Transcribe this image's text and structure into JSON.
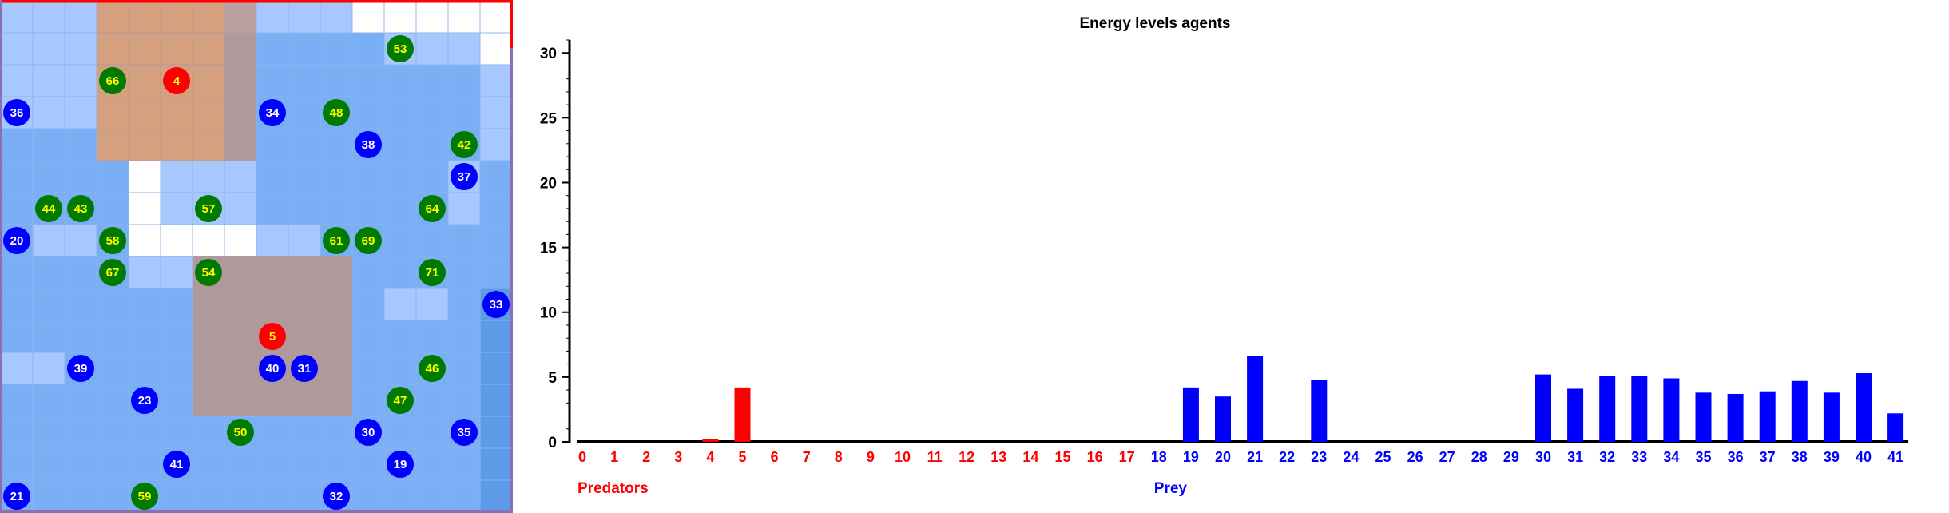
{
  "colors": {
    "predator": "#ff0000",
    "prey_blue": "#0000ff",
    "prey_green": "#007a00",
    "predator_label": "#ffff00",
    "prey_blue_label": "#ffffff",
    "prey_green_label": "#ffff00",
    "grid_frame_top": "#ff0000",
    "grid_frame_sides": "#8b6fb5",
    "region_overlay": "#c39078"
  },
  "grid": {
    "cols": 16,
    "rows": 16,
    "cell_shades": [
      "LLLPPPPLLLLWWWWW",
      "LLLPPPPMMMMMLLLW",
      "LLLPPPPMMMMMMMML",
      "LLLPPPPMMMMMMMML",
      "MMMPPPPMMMMMMMML",
      "MMMMWLLLMMMMMMLM",
      "MMMMWLLLMMMMMMLM",
      "MLLMWWWWLLMMMMMM",
      "MMMMLLMMMMMMMMMM",
      "MMMMMMMMMMMMLLMD",
      "MMMMMMMMMMMMMMMD",
      "LLMMMMMMMMMMMMMD",
      "MMMMMMMMMMMMMMMD",
      "MMMMMMMMMMMMMMMD",
      "MMMMMMMMMMMMMMMD",
      "MMMMMMMMMMMMMMMD"
    ],
    "shade_colors": {
      "W": "#ffffff",
      "L": "#a6c8ff",
      "M": "#7aaff6",
      "D": "#5d9be8",
      "P": "#ffc890"
    },
    "overlay_regions": [
      {
        "col": 3,
        "row": 0,
        "w": 5,
        "h": 5
      },
      {
        "col": 6,
        "row": 8,
        "w": 5,
        "h": 5
      }
    ],
    "agents": [
      {
        "id": "4",
        "type": "predator",
        "col": 5,
        "row": 2
      },
      {
        "id": "5",
        "type": "predator",
        "col": 8,
        "row": 10
      },
      {
        "id": "66",
        "type": "green",
        "col": 3,
        "row": 2
      },
      {
        "id": "53",
        "type": "green",
        "col": 12,
        "row": 1
      },
      {
        "id": "36",
        "type": "blue",
        "col": 0,
        "row": 3
      },
      {
        "id": "34",
        "type": "blue",
        "col": 8,
        "row": 3
      },
      {
        "id": "48",
        "type": "green",
        "col": 10,
        "row": 3
      },
      {
        "id": "38",
        "type": "blue",
        "col": 11,
        "row": 4
      },
      {
        "id": "42",
        "type": "green",
        "col": 14,
        "row": 4
      },
      {
        "id": "37",
        "type": "blue",
        "col": 14,
        "row": 5
      },
      {
        "id": "44",
        "type": "green",
        "col": 1,
        "row": 6
      },
      {
        "id": "43",
        "type": "green",
        "col": 2,
        "row": 6
      },
      {
        "id": "57",
        "type": "green",
        "col": 6,
        "row": 6
      },
      {
        "id": "64",
        "type": "green",
        "col": 13,
        "row": 6
      },
      {
        "id": "20",
        "type": "blue",
        "col": 0,
        "row": 7
      },
      {
        "id": "58",
        "type": "green",
        "col": 3,
        "row": 7
      },
      {
        "id": "61",
        "type": "green",
        "col": 10,
        "row": 7
      },
      {
        "id": "69",
        "type": "green",
        "col": 11,
        "row": 7
      },
      {
        "id": "67",
        "type": "green",
        "col": 3,
        "row": 8
      },
      {
        "id": "54",
        "type": "green",
        "col": 6,
        "row": 8
      },
      {
        "id": "71",
        "type": "green",
        "col": 13,
        "row": 8
      },
      {
        "id": "33",
        "type": "blue",
        "col": 15,
        "row": 9
      },
      {
        "id": "39",
        "type": "blue",
        "col": 2,
        "row": 11
      },
      {
        "id": "40",
        "type": "blue",
        "col": 8,
        "row": 11
      },
      {
        "id": "31",
        "type": "blue",
        "col": 9,
        "row": 11
      },
      {
        "id": "46",
        "type": "green",
        "col": 13,
        "row": 11
      },
      {
        "id": "23",
        "type": "blue",
        "col": 4,
        "row": 12
      },
      {
        "id": "47",
        "type": "green",
        "col": 12,
        "row": 12
      },
      {
        "id": "50",
        "type": "green",
        "col": 7,
        "row": 13
      },
      {
        "id": "30",
        "type": "blue",
        "col": 11,
        "row": 13
      },
      {
        "id": "35",
        "type": "blue",
        "col": 14,
        "row": 13
      },
      {
        "id": "41",
        "type": "blue",
        "col": 5,
        "row": 14
      },
      {
        "id": "19",
        "type": "blue",
        "col": 12,
        "row": 14
      },
      {
        "id": "21",
        "type": "blue",
        "col": 0,
        "row": 15
      },
      {
        "id": "59",
        "type": "green",
        "col": 4,
        "row": 15
      },
      {
        "id": "32",
        "type": "blue",
        "col": 10,
        "row": 15
      }
    ]
  },
  "chart_data": {
    "type": "bar",
    "title": "Energy levels agents",
    "xlabel": "",
    "ylabel": "",
    "ylim": [
      0,
      31
    ],
    "yticks": [
      0,
      5,
      10,
      15,
      20,
      25,
      30
    ],
    "grid": false,
    "groups": [
      {
        "name": "Predators",
        "color": "#ff0000"
      },
      {
        "name": "Prey",
        "color": "#0000ff"
      }
    ],
    "categories": [
      "0",
      "1",
      "2",
      "3",
      "4",
      "5",
      "6",
      "7",
      "8",
      "9",
      "10",
      "11",
      "12",
      "13",
      "14",
      "15",
      "16",
      "17",
      "18",
      "19",
      "20",
      "21",
      "22",
      "23",
      "24",
      "25",
      "26",
      "27",
      "28",
      "29",
      "30",
      "31",
      "32",
      "33",
      "34",
      "35",
      "36",
      "37",
      "38",
      "39",
      "40",
      "41"
    ],
    "category_group": [
      "Predators",
      "Predators",
      "Predators",
      "Predators",
      "Predators",
      "Predators",
      "Predators",
      "Predators",
      "Predators",
      "Predators",
      "Predators",
      "Predators",
      "Predators",
      "Predators",
      "Predators",
      "Predators",
      "Predators",
      "Predators",
      "Prey",
      "Prey",
      "Prey",
      "Prey",
      "Prey",
      "Prey",
      "Prey",
      "Prey",
      "Prey",
      "Prey",
      "Prey",
      "Prey",
      "Prey",
      "Prey",
      "Prey",
      "Prey",
      "Prey",
      "Prey",
      "Prey",
      "Prey",
      "Prey",
      "Prey",
      "Prey",
      "Prey"
    ],
    "values": [
      0,
      0,
      0,
      0,
      0.2,
      4.2,
      0,
      0,
      0,
      0,
      0,
      0,
      0,
      0,
      0,
      0,
      0,
      0,
      0,
      4.2,
      3.5,
      6.6,
      0,
      4.8,
      0,
      0,
      0,
      0,
      0,
      0,
      5.2,
      4.1,
      5.1,
      5.1,
      4.9,
      3.8,
      3.7,
      3.9,
      4.7,
      3.8,
      5.3,
      2.2
    ]
  }
}
